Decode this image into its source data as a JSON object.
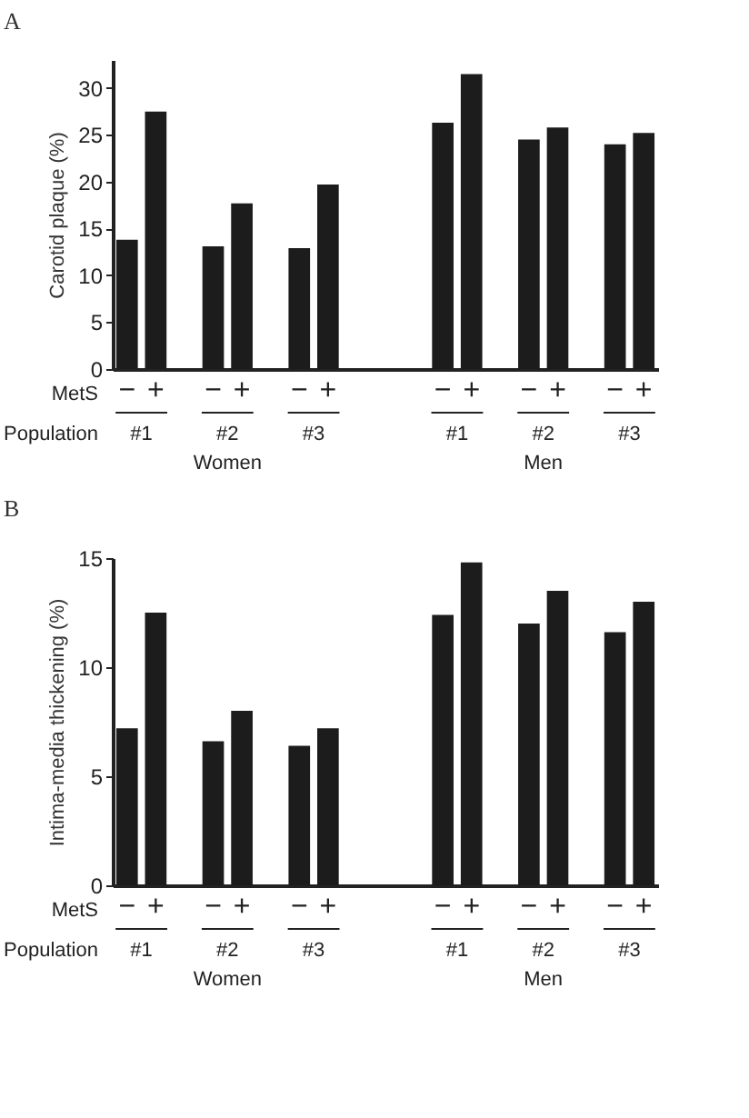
{
  "chart_data": [
    {
      "type": "bar",
      "title": "A",
      "ylabel": "Carotid plaque (%)",
      "categories": [
        "−",
        "+",
        null,
        "−",
        "+",
        null,
        "−",
        "+",
        null,
        null,
        null,
        "−",
        "+",
        null,
        "−",
        "+",
        null,
        "−",
        "+"
      ],
      "values": [
        13.8,
        27.5,
        null,
        13.1,
        17.7,
        null,
        12.9,
        19.7,
        null,
        null,
        null,
        26.3,
        31.5,
        null,
        24.5,
        25.8,
        null,
        24.0,
        25.2
      ],
      "color": "#1c1c1c",
      "ylim": [
        0,
        33
      ],
      "yticks": [
        0,
        5,
        10,
        15,
        20,
        25,
        30
      ],
      "grid": false,
      "annotations": [
        "MetS",
        "Population",
        "#1",
        "#2",
        "#3",
        "#1",
        "#2",
        "#3",
        "Women",
        "Men"
      ]
    },
    {
      "type": "bar",
      "title": "B",
      "ylabel": "Intima-media thickening (%)",
      "categories": [
        "−",
        "+",
        null,
        "−",
        "+",
        null,
        "−",
        "+",
        null,
        null,
        null,
        "−",
        "+",
        null,
        "−",
        "+",
        null,
        "−",
        "+"
      ],
      "values": [
        7.2,
        12.5,
        null,
        6.6,
        8.0,
        null,
        6.4,
        7.2,
        null,
        null,
        null,
        12.4,
        14.8,
        null,
        12.0,
        13.5,
        null,
        11.6,
        13.0
      ],
      "color": "#1c1c1c",
      "ylim": [
        0,
        15
      ],
      "yticks": [
        0,
        5,
        10,
        15
      ],
      "grid": false,
      "annotations": [
        "MetS",
        "Population",
        "#1",
        "#2",
        "#3",
        "#1",
        "#2",
        "#3",
        "Women",
        "Men"
      ]
    }
  ]
}
